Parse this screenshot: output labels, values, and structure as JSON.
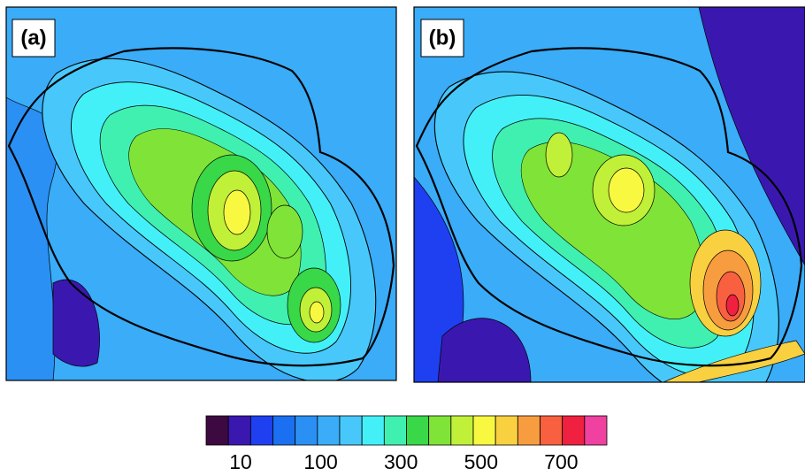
{
  "panels": [
    {
      "label": "(a)"
    },
    {
      "label": "(b)"
    }
  ],
  "colorbar": {
    "colors": [
      "#3c0a40",
      "#3a18b0",
      "#1e40f0",
      "#1a70f0",
      "#2a90f4",
      "#3aacf8",
      "#48c8fa",
      "#44f0f8",
      "#40f0b0",
      "#38d848",
      "#80e438",
      "#c0f038",
      "#f8f840",
      "#f8d040",
      "#f89c40",
      "#f86040",
      "#f02040",
      "#f040a0"
    ],
    "ticks": [
      10,
      100,
      300,
      500,
      700
    ]
  }
}
